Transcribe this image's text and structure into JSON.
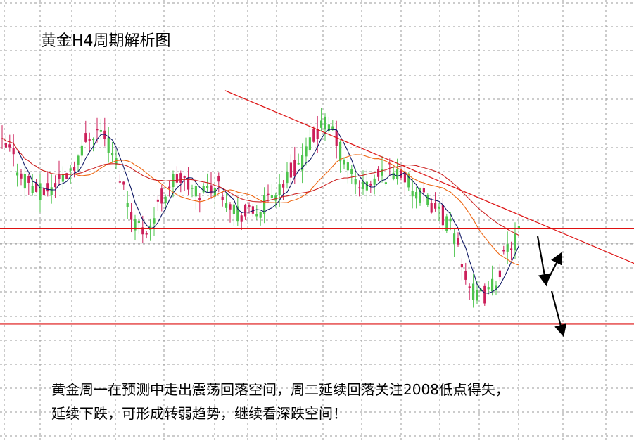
{
  "chart_data": {
    "type": "candlestick",
    "title": "黄金H4周期解析图",
    "timeframe": "H4",
    "grid": true,
    "colors": {
      "up": "#cc1f5a",
      "down": "#4ec44e",
      "ma_fast": "#111a66",
      "ma_mid": "#cc2222",
      "ma_slow": "#ee6611",
      "trendline": "#dd1111",
      "support": "#dd1111",
      "arrow": "#000000"
    },
    "price_path": [
      0.72,
      0.7,
      0.64,
      0.6,
      0.57,
      0.545,
      0.56,
      0.585,
      0.61,
      0.65,
      0.69,
      0.76,
      0.78,
      0.77,
      0.7,
      0.62,
      0.52,
      0.44,
      0.41,
      0.43,
      0.5,
      0.56,
      0.6,
      0.59,
      0.56,
      0.545,
      0.56,
      0.58,
      0.56,
      0.52,
      0.48,
      0.46,
      0.47,
      0.49,
      0.52,
      0.56,
      0.59,
      0.62,
      0.66,
      0.7,
      0.76,
      0.8,
      0.79,
      0.72,
      0.65,
      0.6,
      0.57,
      0.58,
      0.6,
      0.62,
      0.64,
      0.62,
      0.58,
      0.54,
      0.52,
      0.5,
      0.47,
      0.43,
      0.38,
      0.26,
      0.18,
      0.16,
      0.17,
      0.22,
      0.3,
      0.36,
      0.4
    ],
    "levels": [
      {
        "name": "resistance-trendline",
        "type": "line",
        "from": [
          0.355,
          0.925
        ],
        "to": [
          1.0,
          0.285
        ]
      },
      {
        "name": "support-upper",
        "type": "horizontal",
        "value": 0.415
      },
      {
        "name": "support-lower",
        "type": "horizontal",
        "value": 0.06
      }
    ]
  },
  "page": {
    "title": "黄金H4周期解析图",
    "analysis_line1": "黄金周一在预测中走出震荡回落空间，周二延续回落关注2008低点得失，",
    "analysis_line2": "延续下跌，可形成转弱趋势，继续看深跌空间！"
  }
}
